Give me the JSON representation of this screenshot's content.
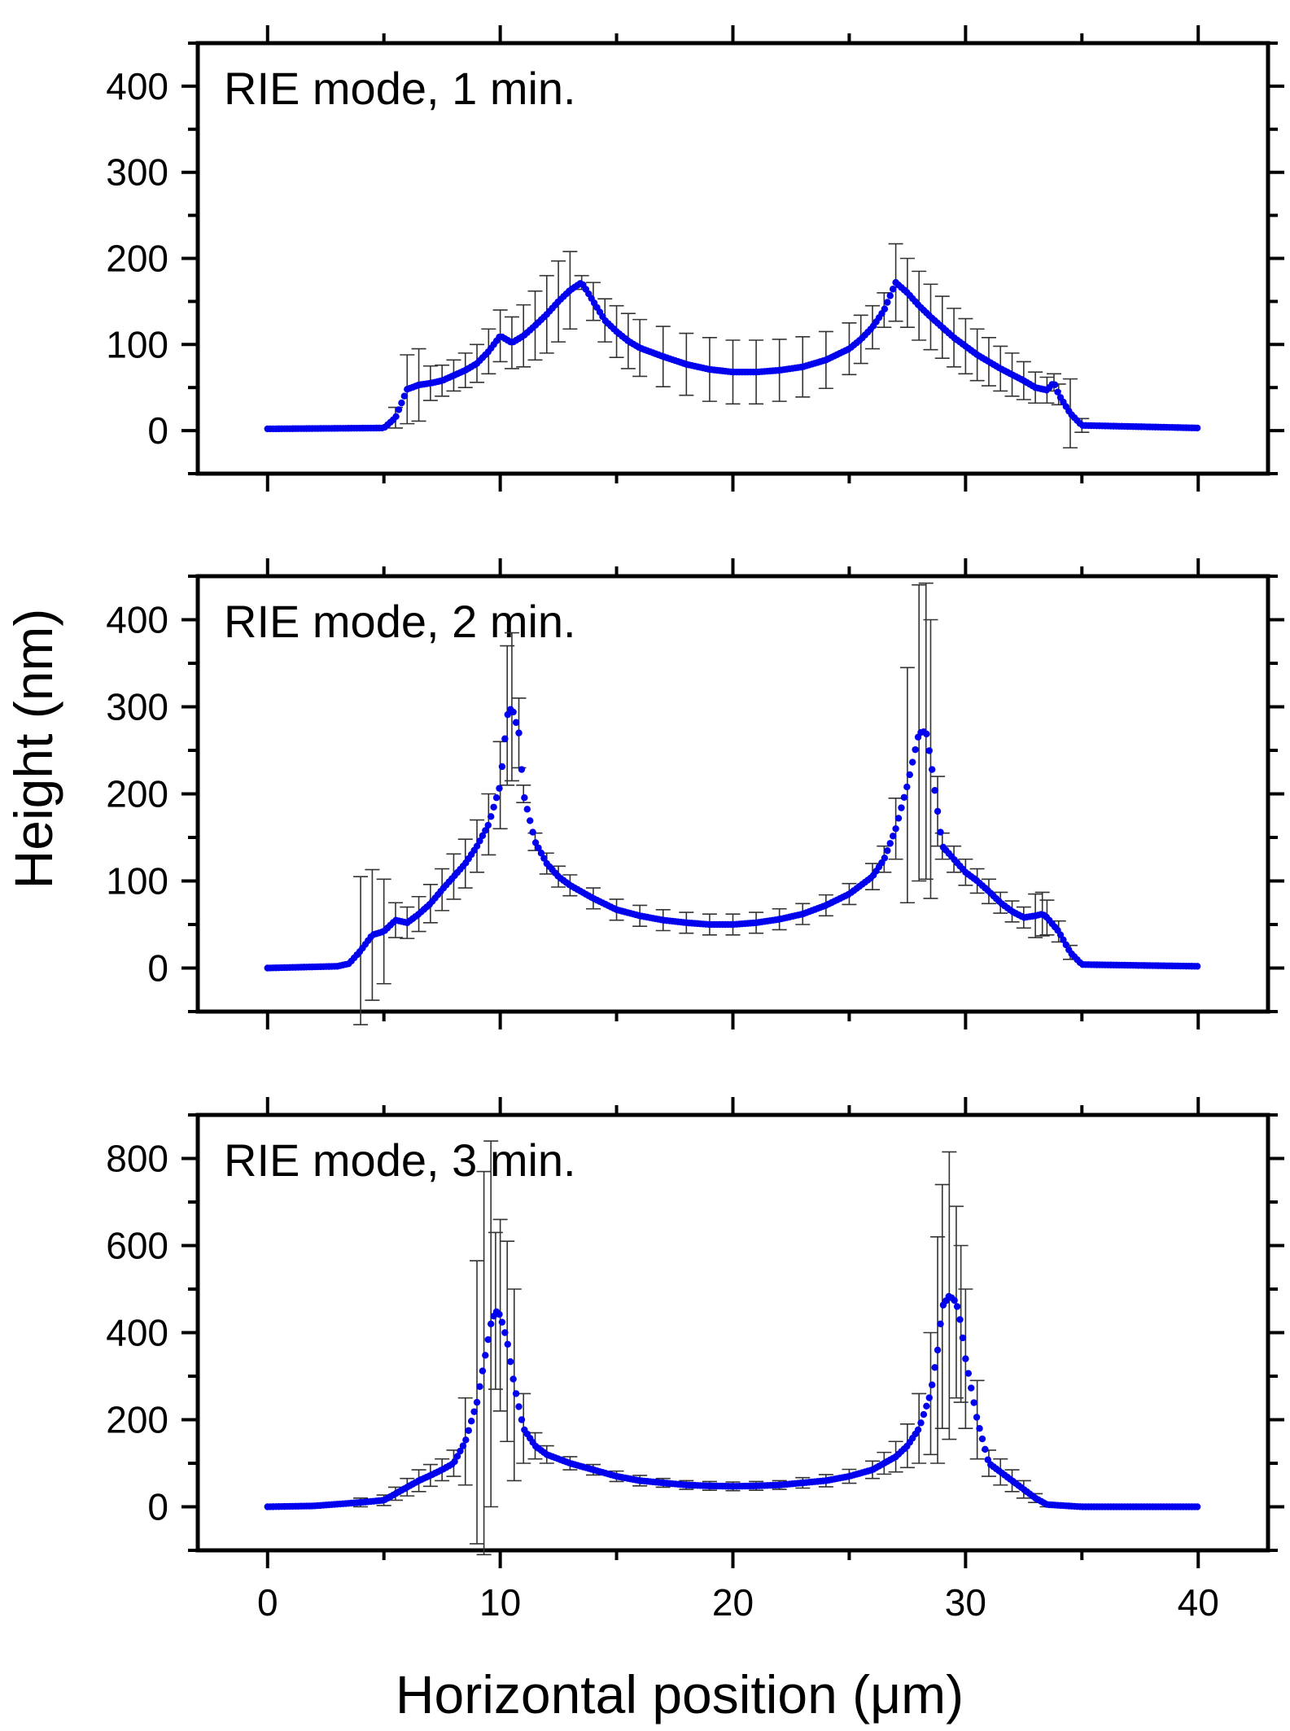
{
  "figure": {
    "shared_xlabel": "Horizontal position (μm)",
    "shared_ylabel": "Height (nm)",
    "x_ticks": [
      0,
      10,
      20,
      30,
      40
    ]
  },
  "colors": {
    "points": "#0000ee",
    "error_bars": "#333333",
    "axes": "#000000"
  },
  "chart_data": [
    {
      "type": "scatter",
      "annotation": "RIE mode, 1 min.",
      "xlabel": "Horizontal position (μm)",
      "ylabel": "Height (nm)",
      "xlim": [
        -3,
        43
      ],
      "ylim": [
        -50,
        450
      ],
      "yticks": [
        0,
        100,
        200,
        300,
        400
      ],
      "series": [
        {
          "name": "RIE mode, 1 min.",
          "x": [
            0,
            5,
            5.5,
            6,
            6.5,
            7,
            7.5,
            8,
            8.5,
            9,
            9.5,
            10,
            10.5,
            11,
            11.5,
            12,
            12.5,
            13,
            13.5,
            14,
            14.5,
            15,
            15.5,
            16,
            17,
            18,
            19,
            20,
            21,
            22,
            23,
            24,
            25,
            25.5,
            26,
            26.5,
            27,
            27.5,
            28,
            28.5,
            29,
            29.5,
            30,
            30.5,
            31,
            31.5,
            32,
            32.5,
            33,
            33.5,
            33.8,
            34,
            34.5,
            35,
            40
          ],
          "y": [
            2,
            3,
            15,
            48,
            53,
            55,
            58,
            64,
            70,
            78,
            92,
            110,
            102,
            110,
            122,
            135,
            150,
            163,
            172,
            150,
            128,
            115,
            104,
            96,
            86,
            77,
            71,
            68,
            68,
            70,
            74,
            82,
            95,
            106,
            120,
            140,
            172,
            160,
            145,
            132,
            120,
            108,
            98,
            88,
            80,
            72,
            65,
            58,
            50,
            47,
            56,
            42,
            20,
            6,
            3
          ],
          "error": [
            0,
            0,
            12,
            40,
            42,
            20,
            18,
            18,
            20,
            22,
            26,
            30,
            30,
            36,
            40,
            45,
            47,
            45,
            8,
            22,
            25,
            30,
            32,
            33,
            35,
            36,
            37,
            37,
            37,
            36,
            35,
            33,
            30,
            28,
            25,
            20,
            45,
            40,
            40,
            38,
            36,
            34,
            32,
            30,
            28,
            26,
            25,
            22,
            18,
            15,
            10,
            12,
            40,
            8,
            0
          ]
        }
      ]
    },
    {
      "type": "scatter",
      "annotation": "RIE mode, 2 min.",
      "xlabel": "Horizontal position (μm)",
      "ylabel": "Height (nm)",
      "xlim": [
        -3,
        43
      ],
      "ylim": [
        -50,
        450
      ],
      "yticks": [
        0,
        100,
        200,
        300,
        400
      ],
      "series": [
        {
          "name": "RIE mode, 2 min.",
          "x": [
            0,
            3,
            3.5,
            4,
            4.5,
            5,
            5.5,
            6,
            6.5,
            7,
            7.5,
            8,
            8.5,
            9,
            9.5,
            10,
            10.3,
            10.5,
            10.8,
            11,
            11.5,
            12,
            12.5,
            13,
            14,
            15,
            16,
            17,
            18,
            19,
            20,
            21,
            22,
            23,
            24,
            25,
            26,
            26.5,
            27,
            27.5,
            28,
            28.3,
            28.5,
            28.8,
            29,
            29.5,
            30,
            30.5,
            31,
            31.5,
            32,
            32.5,
            33,
            33.3,
            33.5,
            34,
            34.5,
            35,
            40
          ],
          "y": [
            0,
            2,
            5,
            20,
            38,
            42,
            55,
            52,
            62,
            74,
            90,
            105,
            120,
            140,
            165,
            210,
            290,
            300,
            270,
            200,
            145,
            120,
            105,
            95,
            80,
            67,
            60,
            55,
            52,
            50,
            50,
            52,
            56,
            62,
            72,
            85,
            105,
            125,
            160,
            210,
            270,
            272,
            240,
            180,
            140,
            125,
            110,
            100,
            88,
            75,
            65,
            58,
            60,
            62,
            58,
            42,
            18,
            4,
            2
          ],
          "error": [
            0,
            0,
            0,
            85,
            75,
            60,
            20,
            18,
            20,
            22,
            24,
            26,
            28,
            30,
            35,
            50,
            80,
            85,
            40,
            10,
            10,
            12,
            12,
            12,
            12,
            12,
            12,
            12,
            12,
            12,
            12,
            12,
            12,
            12,
            12,
            12,
            15,
            15,
            35,
            135,
            170,
            170,
            160,
            40,
            15,
            15,
            15,
            14,
            14,
            12,
            12,
            12,
            25,
            25,
            20,
            12,
            8,
            0,
            0
          ]
        }
      ]
    },
    {
      "type": "scatter",
      "annotation": "RIE mode, 3 min.",
      "xlabel": "Horizontal position (μm)",
      "ylabel": "Height (nm)",
      "xlim": [
        -3,
        43
      ],
      "ylim": [
        -100,
        900
      ],
      "yticks": [
        0,
        200,
        400,
        600,
        800
      ],
      "series": [
        {
          "name": "RIE mode, 3 min.",
          "x": [
            0,
            2,
            4,
            5,
            5.5,
            6,
            6.5,
            7,
            7.5,
            8,
            8.5,
            9,
            9.3,
            9.6,
            9.8,
            10,
            10.3,
            10.6,
            11,
            11.5,
            12,
            13,
            14,
            15,
            16,
            17,
            18,
            19,
            20,
            21,
            22,
            23,
            24,
            25,
            26,
            26.5,
            27,
            27.5,
            28,
            28.5,
            28.8,
            29,
            29.3,
            29.6,
            29.8,
            30,
            30.5,
            31,
            31.5,
            32,
            32.5,
            33,
            33.5,
            35,
            40
          ],
          "y": [
            0,
            2,
            10,
            15,
            30,
            45,
            60,
            72,
            85,
            100,
            150,
            240,
            330,
            420,
            450,
            440,
            380,
            280,
            180,
            140,
            120,
            100,
            85,
            70,
            60,
            55,
            50,
            48,
            47,
            48,
            50,
            55,
            60,
            70,
            85,
            100,
            115,
            140,
            180,
            260,
            360,
            460,
            485,
            470,
            420,
            340,
            200,
            100,
            80,
            60,
            40,
            20,
            5,
            0,
            0
          ],
          "error": [
            0,
            5,
            10,
            12,
            15,
            20,
            25,
            25,
            25,
            30,
            100,
            325,
            440,
            420,
            180,
            220,
            230,
            220,
            80,
            30,
            20,
            15,
            12,
            12,
            12,
            10,
            10,
            10,
            10,
            10,
            10,
            12,
            14,
            16,
            20,
            25,
            35,
            50,
            80,
            140,
            260,
            280,
            330,
            220,
            180,
            160,
            90,
            30,
            30,
            25,
            20,
            10,
            5,
            0,
            0
          ]
        }
      ]
    }
  ]
}
